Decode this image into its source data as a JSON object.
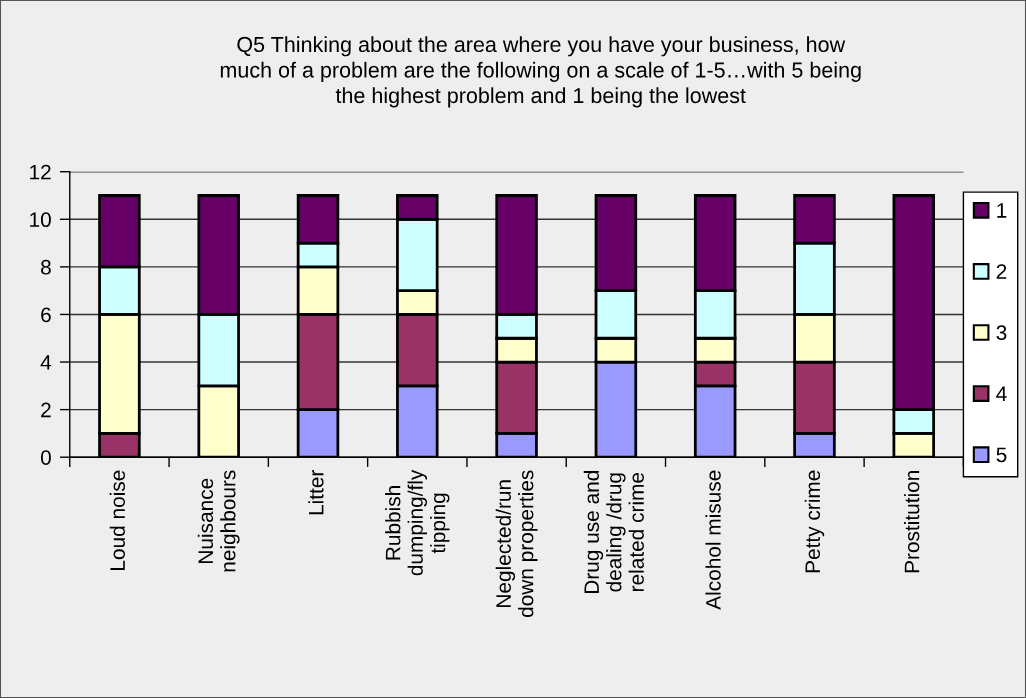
{
  "chart_data": {
    "type": "bar",
    "stacked": true,
    "title": "Q5 Thinking about the area where you have your business, how\nmuch of a problem are the following on a scale of 1-5…with 5 being\nthe highest problem and 1 being the lowest",
    "categories": [
      "Loud noise",
      "Nuisance\nneighbours",
      "Litter",
      "Rubbish\ndumping/fly\ntipping",
      "Neglected/run\ndown properties",
      "Drug use and\ndealing /drug\nrelated crime",
      "Alcohol misuse",
      "Petty crime",
      "Prostitution"
    ],
    "series": [
      {
        "name": "5",
        "color": "#9999ff",
        "values": [
          0,
          0,
          2,
          3,
          1,
          4,
          3,
          1,
          0
        ]
      },
      {
        "name": "4",
        "color": "#993366",
        "values": [
          1,
          0,
          4,
          3,
          3,
          0,
          1,
          3,
          0
        ]
      },
      {
        "name": "3",
        "color": "#ffffcc",
        "values": [
          5,
          3,
          2,
          1,
          1,
          1,
          1,
          2,
          1
        ]
      },
      {
        "name": "2",
        "color": "#ccffff",
        "values": [
          2,
          3,
          1,
          3,
          1,
          2,
          2,
          3,
          1
        ]
      },
      {
        "name": "1",
        "color": "#660066",
        "values": [
          3,
          5,
          2,
          1,
          5,
          4,
          4,
          2,
          9
        ]
      }
    ],
    "ylim": [
      0,
      12
    ],
    "yticks": [
      0,
      2,
      4,
      6,
      8,
      10,
      12
    ],
    "grid": "y",
    "legend": "right"
  }
}
